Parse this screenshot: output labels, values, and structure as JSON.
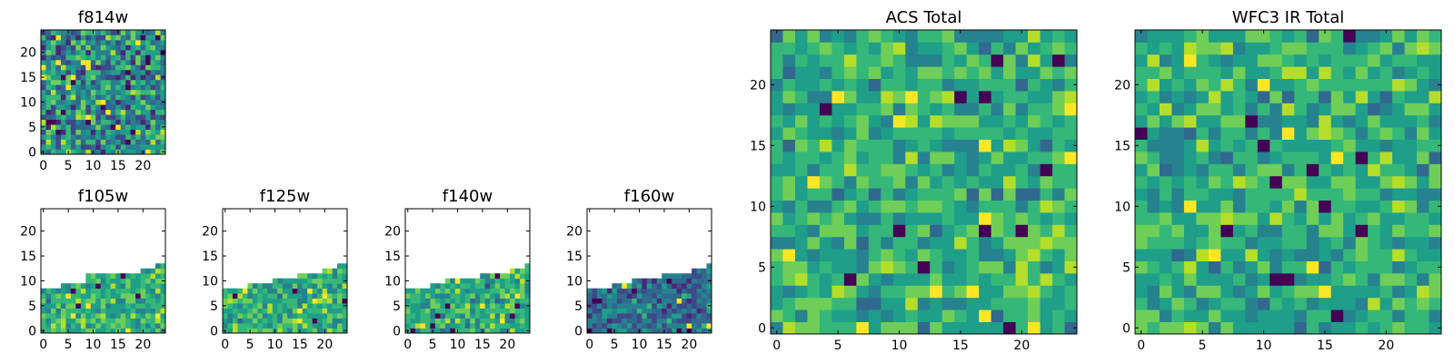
{
  "chart_data": [
    {
      "name": "f814w",
      "type": "heatmap",
      "title": "f814w",
      "grid_size": 25,
      "coverage": "full",
      "xlim": [
        0,
        24
      ],
      "ylim": [
        0,
        24
      ],
      "xticks": [
        "0",
        "5",
        "10",
        "15",
        "20"
      ],
      "yticks": [
        "0",
        "5",
        "10",
        "15",
        "20"
      ],
      "colormap": "viridis",
      "texture_variance": "high"
    },
    {
      "name": "f105w",
      "type": "heatmap",
      "title": "f105w",
      "grid_size": 25,
      "coverage": "partial",
      "filled_row_counts_by_column": [
        9,
        9,
        9,
        9,
        10,
        10,
        10,
        10,
        10,
        12,
        12,
        12,
        12,
        12,
        12,
        12,
        12,
        12,
        12,
        12,
        13,
        13,
        13,
        14,
        14
      ],
      "xlim": [
        0,
        24
      ],
      "ylim": [
        0,
        24
      ],
      "xticks": [
        "0",
        "5",
        "10",
        "15",
        "20"
      ],
      "yticks": [
        "0",
        "5",
        "10",
        "15",
        "20"
      ],
      "colormap": "viridis"
    },
    {
      "name": "f125w",
      "type": "heatmap",
      "title": "f125w",
      "grid_size": 25,
      "coverage": "partial",
      "filled_row_counts_by_column": [
        9,
        9,
        9,
        9,
        9,
        10,
        10,
        10,
        10,
        10,
        11,
        11,
        11,
        11,
        11,
        12,
        12,
        12,
        12,
        12,
        13,
        13,
        13,
        14,
        14
      ],
      "xlim": [
        0,
        24
      ],
      "ylim": [
        0,
        24
      ],
      "xticks": [
        "0",
        "5",
        "10",
        "15",
        "20"
      ],
      "yticks": [
        "0",
        "5",
        "10",
        "15",
        "20"
      ],
      "colormap": "viridis"
    },
    {
      "name": "f140w",
      "type": "heatmap",
      "title": "f140w",
      "grid_size": 25,
      "coverage": "partial",
      "filled_row_counts_by_column": [
        9,
        9,
        9,
        9,
        9,
        10,
        10,
        10,
        11,
        11,
        11,
        11,
        11,
        11,
        11,
        12,
        12,
        12,
        12,
        12,
        12,
        13,
        13,
        13,
        14
      ],
      "xlim": [
        0,
        24
      ],
      "ylim": [
        0,
        24
      ],
      "xticks": [
        "0",
        "5",
        "10",
        "15",
        "20"
      ],
      "yticks": [
        "0",
        "5",
        "10",
        "15",
        "20"
      ],
      "colormap": "viridis"
    },
    {
      "name": "f160w",
      "type": "heatmap",
      "title": "f160w",
      "grid_size": 25,
      "coverage": "partial",
      "filled_row_counts_by_column": [
        9,
        9,
        9,
        9,
        9,
        10,
        10,
        10,
        10,
        11,
        11,
        11,
        11,
        11,
        11,
        12,
        12,
        12,
        12,
        12,
        12,
        13,
        13,
        13,
        14
      ],
      "xlim": [
        0,
        24
      ],
      "ylim": [
        0,
        24
      ],
      "xticks": [
        "0",
        "5",
        "10",
        "15",
        "20"
      ],
      "yticks": [
        "0",
        "5",
        "10",
        "15",
        "20"
      ],
      "colormap": "viridis",
      "palette_bias": "dark"
    },
    {
      "name": "acs-total",
      "type": "heatmap",
      "title": "ACS Total",
      "grid_size": 25,
      "coverage": "full",
      "xlim": [
        0,
        24
      ],
      "ylim": [
        0,
        24
      ],
      "xticks": [
        "0",
        "5",
        "10",
        "15",
        "20"
      ],
      "yticks": [
        "0",
        "5",
        "10",
        "15",
        "20"
      ],
      "colormap": "viridis",
      "texture_variance": "medium"
    },
    {
      "name": "wfc3-ir-total",
      "type": "heatmap",
      "title": "WFC3 IR Total",
      "grid_size": 25,
      "coverage": "full",
      "xlim": [
        0,
        24
      ],
      "ylim": [
        0,
        24
      ],
      "xticks": [
        "0",
        "5",
        "10",
        "15",
        "20"
      ],
      "yticks": [
        "0",
        "5",
        "10",
        "15",
        "20"
      ],
      "colormap": "viridis",
      "texture_variance": "medium"
    }
  ],
  "colors": {
    "viridis": [
      "#440154",
      "#482878",
      "#3e4989",
      "#31688e",
      "#26828e",
      "#1f9e89",
      "#35b779",
      "#6ece58",
      "#b5de2b",
      "#fde725"
    ],
    "axes": "#000000",
    "background": "#ffffff"
  }
}
